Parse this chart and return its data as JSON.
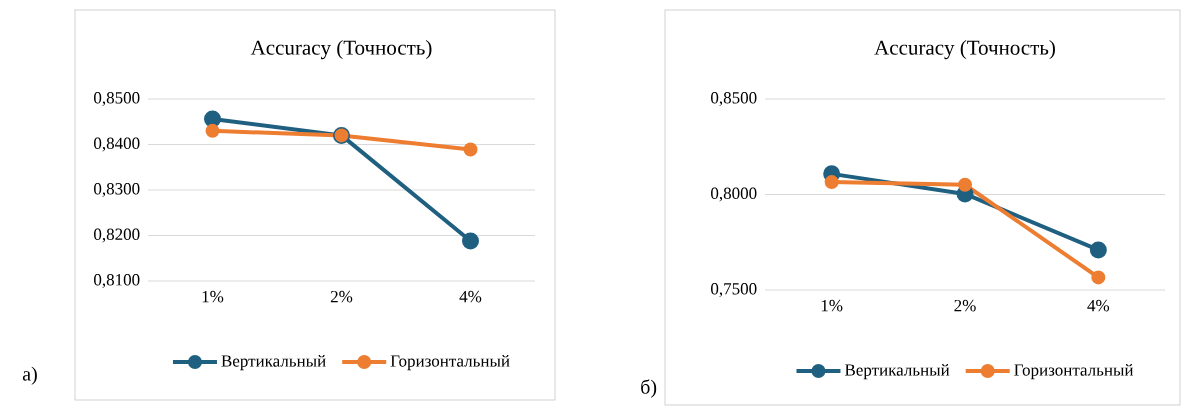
{
  "chart_data": [
    {
      "type": "line",
      "title": "Accuracy (Точность)",
      "categories": [
        "1%",
        "2%",
        "4%"
      ],
      "series": [
        {
          "name": "Вертикальный",
          "color": "#1f5f80",
          "values": [
            0.8456,
            0.842,
            0.8188
          ]
        },
        {
          "name": "Горизонтальный",
          "color": "#ed7d31",
          "values": [
            0.843,
            0.842,
            0.8389
          ]
        }
      ],
      "ylim": [
        0.81,
        0.85
      ],
      "yticks": [
        {
          "value": 0.81,
          "label": "0,8100"
        },
        {
          "value": 0.82,
          "label": "0,8200"
        },
        {
          "value": 0.83,
          "label": "0,8300"
        },
        {
          "value": 0.84,
          "label": "0,8400"
        },
        {
          "value": 0.85,
          "label": "0,8500"
        }
      ],
      "grid": "y",
      "legend": "bottom",
      "marker": "circle",
      "annotations": [
        "а)"
      ]
    },
    {
      "type": "line",
      "title": "Accuracy (Точность)",
      "categories": [
        "1%",
        "2%",
        "4%"
      ],
      "series": [
        {
          "name": "Вертикальный",
          "color": "#1f5f80",
          "values": [
            0.8108,
            0.8003,
            0.771
          ]
        },
        {
          "name": "Горизонтальный",
          "color": "#ed7d31",
          "values": [
            0.8065,
            0.8051,
            0.7566
          ]
        }
      ],
      "ylim": [
        0.75,
        0.85
      ],
      "yticks": [
        {
          "value": 0.75,
          "label": "0,7500"
        },
        {
          "value": 0.8,
          "label": "0,8000"
        },
        {
          "value": 0.85,
          "label": "0,8500"
        }
      ],
      "grid": "y",
      "legend": "bottom",
      "marker": "circle",
      "annotations": [
        "б)"
      ]
    }
  ]
}
